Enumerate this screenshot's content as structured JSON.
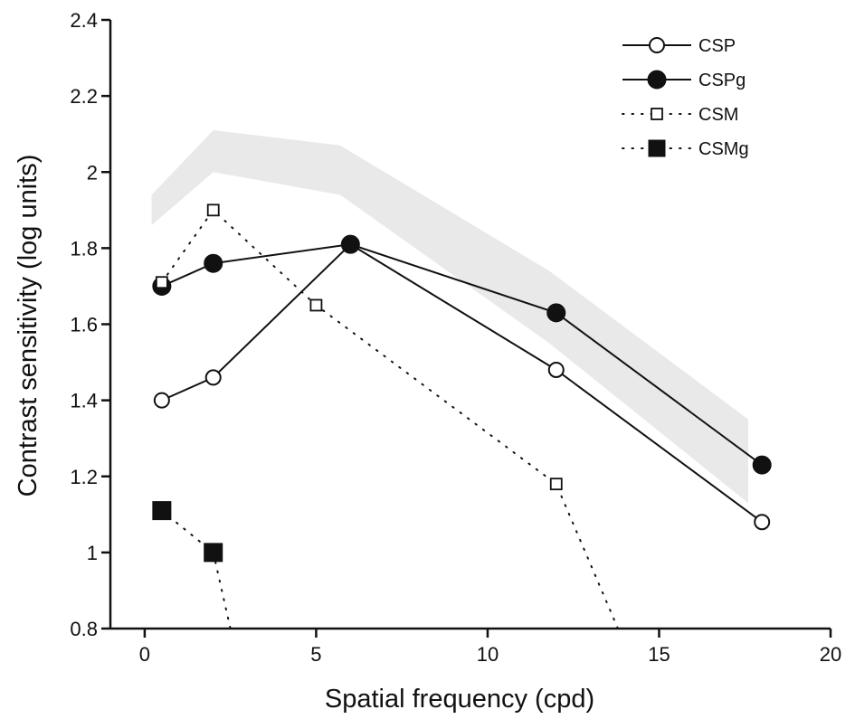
{
  "chart_data": {
    "type": "line",
    "xlabel": "Spatial frequency (cpd)",
    "ylabel": "Contrast sensitivity (log units)",
    "xlim": [
      -1,
      20
    ],
    "ylim": [
      0.8,
      2.4
    ],
    "xticks": [
      "0",
      "5",
      "10",
      "15",
      "20"
    ],
    "xtick_values": [
      0,
      5,
      10,
      15,
      20
    ],
    "yticks": [
      "0.8",
      "1",
      "1.2",
      "1.4",
      "1.6",
      "1.8",
      "2",
      "2.2",
      "2.4"
    ],
    "ytick_values": [
      0.8,
      1.0,
      1.2,
      1.4,
      1.6,
      1.8,
      2.0,
      2.2,
      2.4
    ],
    "grid": false,
    "legend_position": "top-right",
    "band": {
      "fill": "#e9e9e9",
      "x": [
        0.2,
        2.0,
        5.7,
        11.8,
        17.6
      ],
      "lower": [
        1.86,
        2.0,
        1.94,
        1.55,
        1.13
      ],
      "upper": [
        1.94,
        2.11,
        2.07,
        1.74,
        1.35
      ]
    },
    "series": [
      {
        "name": "CSP",
        "marker": "open-circle",
        "line": "solid",
        "x": [
          0.5,
          2.0,
          6.0,
          12.0,
          18.0
        ],
        "y": [
          1.4,
          1.46,
          1.81,
          1.48,
          1.08
        ]
      },
      {
        "name": "CSPg",
        "marker": "filled-circle",
        "line": "solid",
        "x": [
          0.5,
          2.0,
          6.0,
          12.0,
          18.0
        ],
        "y": [
          1.7,
          1.76,
          1.81,
          1.63,
          1.23
        ]
      },
      {
        "name": "CSM",
        "marker": "open-square",
        "line": "dotted",
        "x": [
          0.5,
          2.0,
          5.0,
          12.0,
          13.8
        ],
        "y": [
          1.71,
          1.9,
          1.65,
          1.18,
          0.8
        ]
      },
      {
        "name": "CSMg",
        "marker": "filled-square",
        "line": "dotted",
        "x": [
          0.5,
          2.0,
          2.5
        ],
        "y": [
          1.11,
          1.0,
          0.8
        ]
      }
    ]
  }
}
